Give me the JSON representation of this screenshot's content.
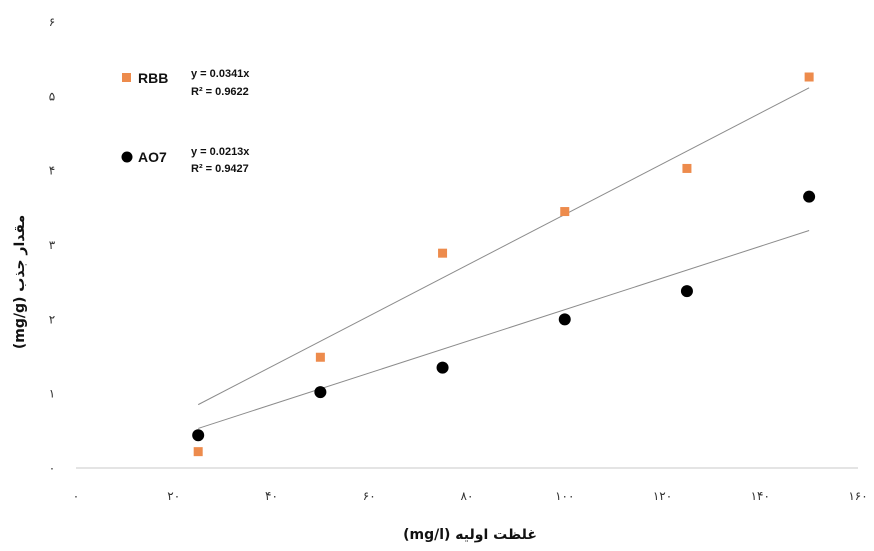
{
  "chart_data": {
    "type": "scatter",
    "xlabel": "غلظت اولیه (mg/l)",
    "ylabel": "مقدار جذب (mg/g)",
    "xlim": [
      0,
      160
    ],
    "ylim": [
      0,
      6
    ],
    "x_ticks": [
      0,
      20,
      40,
      60,
      80,
      100,
      120,
      140,
      160
    ],
    "y_ticks": [
      0,
      1,
      2,
      3,
      4,
      5,
      6
    ],
    "x_tick_labels": [
      "۰",
      "۲۰",
      "۴۰",
      "۶۰",
      "۸۰",
      "۱۰۰",
      "۱۲۰",
      "۱۴۰",
      "۱۶۰"
    ],
    "y_tick_labels": [
      "۰",
      "۱",
      "۲",
      "۳",
      "۴",
      "۵",
      "۶"
    ],
    "grid": false,
    "legend_position": "top-left",
    "series": [
      {
        "name": "RBB",
        "color": "#ED8B4C",
        "marker": "square",
        "x": [
          25,
          50,
          75,
          100,
          125,
          150
        ],
        "y": [
          0.22,
          1.49,
          2.89,
          3.45,
          4.03,
          5.26
        ],
        "trendline": {
          "slope": 0.0341,
          "x_range": [
            25,
            150
          ]
        },
        "equation": "y = 0.0341x",
        "r2": "R² = 0.9622"
      },
      {
        "name": "AO7",
        "color": "#000000",
        "marker": "circle",
        "x": [
          25,
          50,
          75,
          100,
          125,
          150
        ],
        "y": [
          0.44,
          1.02,
          1.35,
          2.0,
          2.38,
          3.65
        ],
        "trendline": {
          "slope": 0.0213,
          "x_range": [
            25,
            150
          ]
        },
        "equation": "y = 0.0213x",
        "r2": "R² = 0.9427"
      }
    ]
  }
}
